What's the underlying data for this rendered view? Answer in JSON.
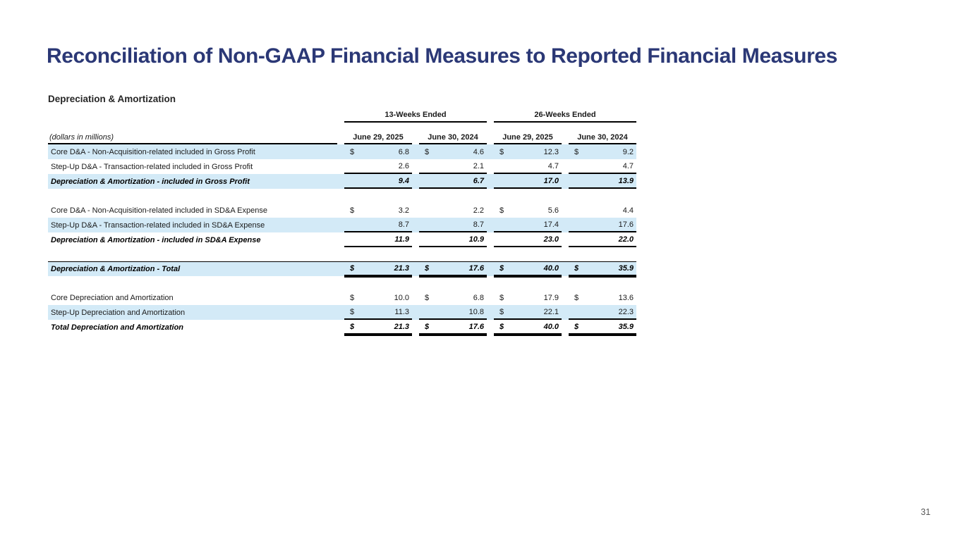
{
  "slide": {
    "title": "Reconciliation of Non-GAAP Financial Measures to Reported Financial Measures",
    "page_number": "31"
  },
  "colors": {
    "title": "#2B3876",
    "row_shade": "#D3EAF7",
    "table_text": "#1A1A1A",
    "rules": "#000000",
    "page_number": "#595959"
  },
  "table": {
    "title": "Depreciation & Amortization",
    "units_note": "(dollars in millions)",
    "col_groups": [
      {
        "label": "13-Weeks Ended"
      },
      {
        "label": "26-Weeks Ended"
      }
    ],
    "col_headers": [
      "June 29, 2025",
      "June 30, 2024",
      "June 29, 2025",
      "June 30, 2024"
    ],
    "rows": [
      {
        "label": "Core D&A - Non-Acquisition-related included in Gross Profit",
        "cells": [
          {
            "cur": "$",
            "val": "6.8"
          },
          {
            "cur": "$",
            "val": "4.6"
          },
          {
            "cur": "$",
            "val": "12.3"
          },
          {
            "cur": "$",
            "val": "9.2"
          }
        ],
        "shaded": true
      },
      {
        "label": "Step-Up D&A - Transaction-related included in Gross Profit",
        "cells": [
          {
            "cur": "",
            "val": "2.6"
          },
          {
            "cur": "",
            "val": "2.1"
          },
          {
            "cur": "",
            "val": "4.7"
          },
          {
            "cur": "",
            "val": "4.7"
          }
        ],
        "shaded": false,
        "rule_below": true
      },
      {
        "label": "Depreciation & Amortization - included in Gross Profit",
        "cells": [
          {
            "cur": "",
            "val": "9.4"
          },
          {
            "cur": "",
            "val": "6.7"
          },
          {
            "cur": "",
            "val": "17.0"
          },
          {
            "cur": "",
            "val": "13.9"
          }
        ],
        "shaded": true,
        "total": true,
        "rule_below": true,
        "gap_after": true
      },
      {
        "label": "Core D&A - Non-Acquisition-related included in SD&A Expense",
        "cells": [
          {
            "cur": "$",
            "val": "3.2"
          },
          {
            "cur": "",
            "val": "2.2"
          },
          {
            "cur": "$",
            "val": "5.6"
          },
          {
            "cur": "",
            "val": "4.4"
          }
        ],
        "shaded": false
      },
      {
        "label": "Step-Up D&A - Transaction-related included in SD&A Expense",
        "cells": [
          {
            "cur": "",
            "val": "8.7"
          },
          {
            "cur": "",
            "val": "8.7"
          },
          {
            "cur": "",
            "val": "17.4"
          },
          {
            "cur": "",
            "val": "17.6"
          }
        ],
        "shaded": true,
        "rule_below": true
      },
      {
        "label": "Depreciation & Amortization - included in SD&A Expense",
        "cells": [
          {
            "cur": "",
            "val": "11.9"
          },
          {
            "cur": "",
            "val": "10.9"
          },
          {
            "cur": "",
            "val": "23.0"
          },
          {
            "cur": "",
            "val": "22.0"
          }
        ],
        "shaded": false,
        "total": true,
        "rule_below": true,
        "gap_after": true
      },
      {
        "label": "Depreciation & Amortization - Total",
        "cells": [
          {
            "cur": "$",
            "val": "21.3"
          },
          {
            "cur": "$",
            "val": "17.6"
          },
          {
            "cur": "$",
            "val": "40.0"
          },
          {
            "cur": "$",
            "val": "35.9"
          }
        ],
        "shaded": true,
        "total": true,
        "full_rule_above": true,
        "double_rule_below": true,
        "gap_after": true
      },
      {
        "label": "Core Depreciation and Amortization",
        "cells": [
          {
            "cur": "$",
            "val": "10.0"
          },
          {
            "cur": "$",
            "val": "6.8"
          },
          {
            "cur": "$",
            "val": "17.9"
          },
          {
            "cur": "$",
            "val": "13.6"
          }
        ],
        "shaded": false
      },
      {
        "label": "Step-Up Depreciation and Amortization",
        "cells": [
          {
            "cur": "$",
            "val": "11.3"
          },
          {
            "cur": "",
            "val": "10.8"
          },
          {
            "cur": "$",
            "val": "22.1"
          },
          {
            "cur": "",
            "val": "22.3"
          }
        ],
        "shaded": true,
        "rule_below": true
      },
      {
        "label": "Total Depreciation and Amortization",
        "cells": [
          {
            "cur": "$",
            "val": "21.3"
          },
          {
            "cur": "$",
            "val": "17.6"
          },
          {
            "cur": "$",
            "val": "40.0"
          },
          {
            "cur": "$",
            "val": "35.9"
          }
        ],
        "shaded": false,
        "total": true,
        "double_rule_below": true
      }
    ]
  }
}
